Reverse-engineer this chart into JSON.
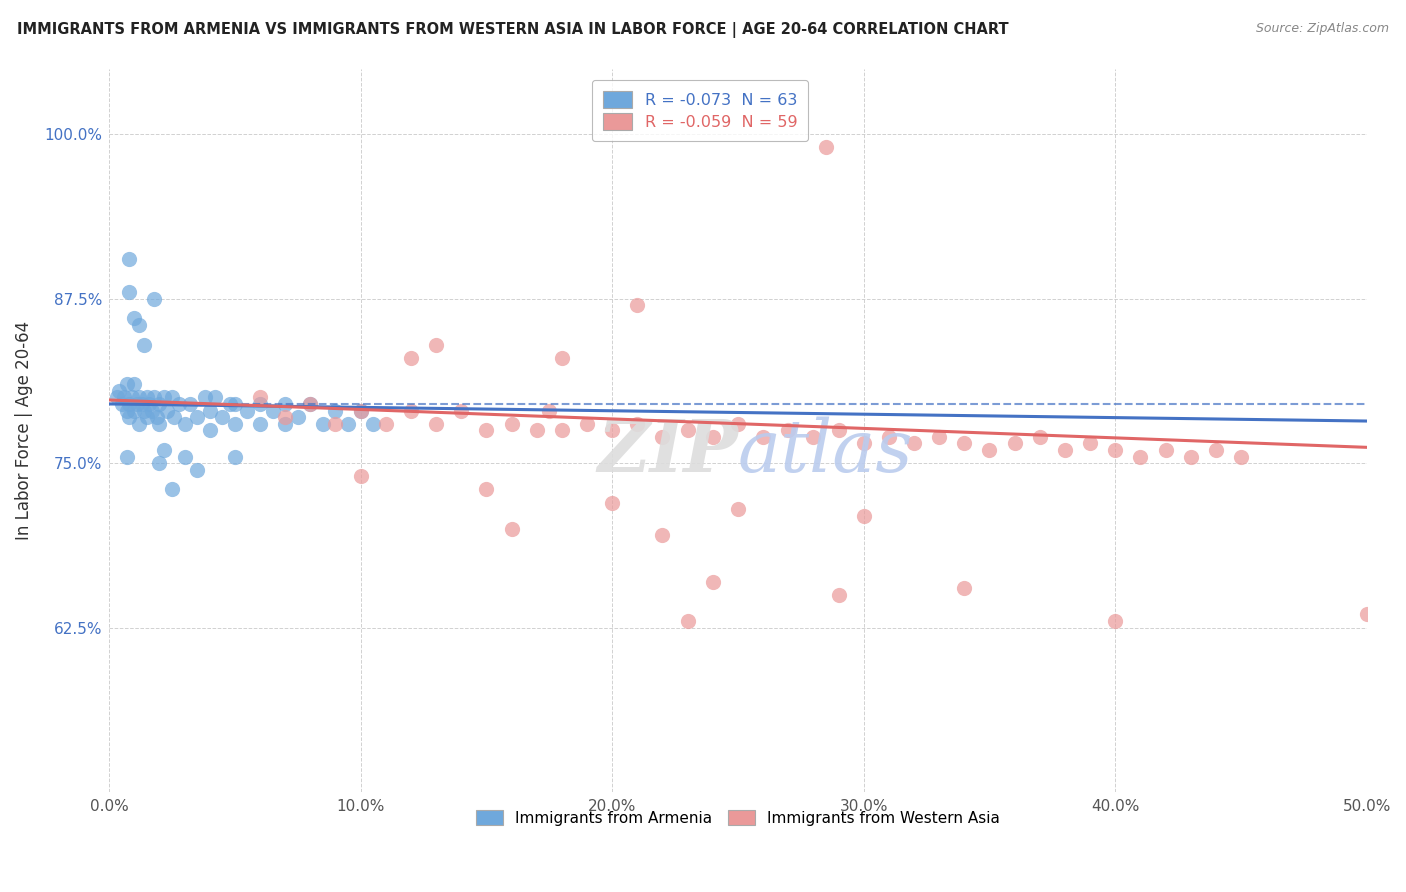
{
  "title": "IMMIGRANTS FROM ARMENIA VS IMMIGRANTS FROM WESTERN ASIA IN LABOR FORCE | AGE 20-64 CORRELATION CHART",
  "source": "Source: ZipAtlas.com",
  "ylabel": "In Labor Force | Age 20-64",
  "xlim": [
    0.0,
    0.5
  ],
  "ylim": [
    0.5,
    1.05
  ],
  "yticks": [
    0.625,
    0.75,
    0.875,
    1.0
  ],
  "ytick_labels": [
    "62.5%",
    "75.0%",
    "87.5%",
    "100.0%"
  ],
  "xticks": [
    0.0,
    0.1,
    0.2,
    0.3,
    0.4,
    0.5
  ],
  "xtick_labels": [
    "0.0%",
    "10.0%",
    "20.0%",
    "30.0%",
    "40.0%",
    "50.0%"
  ],
  "legend1_label": "R = -0.073  N = 63",
  "legend2_label": "R = -0.059  N = 59",
  "series1_color": "#6fa8dc",
  "series2_color": "#ea9999",
  "line1_color": "#4472c4",
  "line2_color": "#e06666",
  "line1_dash_color": "#4472c4",
  "armenia_line": [
    0.0,
    0.795,
    0.5,
    0.782
  ],
  "western_line": [
    0.0,
    0.798,
    0.5,
    0.762
  ],
  "armenia_dash_line": [
    0.0,
    0.795,
    0.5,
    0.795
  ],
  "armenia_points": [
    [
      0.003,
      0.8
    ],
    [
      0.004,
      0.805
    ],
    [
      0.005,
      0.795
    ],
    [
      0.006,
      0.8
    ],
    [
      0.007,
      0.79
    ],
    [
      0.007,
      0.81
    ],
    [
      0.008,
      0.795
    ],
    [
      0.008,
      0.785
    ],
    [
      0.009,
      0.8
    ],
    [
      0.01,
      0.79
    ],
    [
      0.01,
      0.81
    ],
    [
      0.011,
      0.795
    ],
    [
      0.012,
      0.8
    ],
    [
      0.012,
      0.78
    ],
    [
      0.013,
      0.795
    ],
    [
      0.014,
      0.79
    ],
    [
      0.015,
      0.8
    ],
    [
      0.015,
      0.785
    ],
    [
      0.016,
      0.795
    ],
    [
      0.017,
      0.79
    ],
    [
      0.018,
      0.8
    ],
    [
      0.019,
      0.785
    ],
    [
      0.02,
      0.795
    ],
    [
      0.02,
      0.78
    ],
    [
      0.022,
      0.8
    ],
    [
      0.023,
      0.79
    ],
    [
      0.025,
      0.8
    ],
    [
      0.026,
      0.785
    ],
    [
      0.028,
      0.795
    ],
    [
      0.03,
      0.78
    ],
    [
      0.032,
      0.795
    ],
    [
      0.035,
      0.785
    ],
    [
      0.038,
      0.8
    ],
    [
      0.04,
      0.79
    ],
    [
      0.04,
      0.775
    ],
    [
      0.042,
      0.8
    ],
    [
      0.045,
      0.785
    ],
    [
      0.048,
      0.795
    ],
    [
      0.05,
      0.78
    ],
    [
      0.05,
      0.795
    ],
    [
      0.055,
      0.79
    ],
    [
      0.06,
      0.78
    ],
    [
      0.06,
      0.795
    ],
    [
      0.065,
      0.79
    ],
    [
      0.07,
      0.78
    ],
    [
      0.07,
      0.795
    ],
    [
      0.075,
      0.785
    ],
    [
      0.08,
      0.795
    ],
    [
      0.085,
      0.78
    ],
    [
      0.09,
      0.79
    ],
    [
      0.095,
      0.78
    ],
    [
      0.1,
      0.79
    ],
    [
      0.105,
      0.78
    ],
    [
      0.008,
      0.88
    ],
    [
      0.01,
      0.86
    ],
    [
      0.012,
      0.855
    ],
    [
      0.014,
      0.84
    ],
    [
      0.018,
      0.875
    ],
    [
      0.022,
      0.76
    ],
    [
      0.03,
      0.755
    ],
    [
      0.035,
      0.745
    ],
    [
      0.02,
      0.75
    ],
    [
      0.05,
      0.755
    ],
    [
      0.007,
      0.755
    ],
    [
      0.025,
      0.73
    ],
    [
      0.008,
      0.905
    ]
  ],
  "western_points": [
    [
      0.06,
      0.8
    ],
    [
      0.07,
      0.785
    ],
    [
      0.08,
      0.795
    ],
    [
      0.09,
      0.78
    ],
    [
      0.1,
      0.79
    ],
    [
      0.11,
      0.78
    ],
    [
      0.12,
      0.79
    ],
    [
      0.13,
      0.78
    ],
    [
      0.14,
      0.79
    ],
    [
      0.15,
      0.775
    ],
    [
      0.16,
      0.78
    ],
    [
      0.17,
      0.775
    ],
    [
      0.175,
      0.79
    ],
    [
      0.18,
      0.775
    ],
    [
      0.19,
      0.78
    ],
    [
      0.2,
      0.775
    ],
    [
      0.21,
      0.78
    ],
    [
      0.22,
      0.77
    ],
    [
      0.23,
      0.775
    ],
    [
      0.24,
      0.77
    ],
    [
      0.25,
      0.78
    ],
    [
      0.26,
      0.77
    ],
    [
      0.27,
      0.775
    ],
    [
      0.28,
      0.77
    ],
    [
      0.29,
      0.775
    ],
    [
      0.3,
      0.765
    ],
    [
      0.31,
      0.77
    ],
    [
      0.32,
      0.765
    ],
    [
      0.33,
      0.77
    ],
    [
      0.34,
      0.765
    ],
    [
      0.35,
      0.76
    ],
    [
      0.36,
      0.765
    ],
    [
      0.37,
      0.77
    ],
    [
      0.38,
      0.76
    ],
    [
      0.39,
      0.765
    ],
    [
      0.4,
      0.76
    ],
    [
      0.41,
      0.755
    ],
    [
      0.42,
      0.76
    ],
    [
      0.43,
      0.755
    ],
    [
      0.44,
      0.76
    ],
    [
      0.45,
      0.755
    ],
    [
      0.285,
      0.99
    ],
    [
      0.18,
      0.83
    ],
    [
      0.12,
      0.83
    ],
    [
      0.13,
      0.84
    ],
    [
      0.21,
      0.87
    ],
    [
      0.1,
      0.74
    ],
    [
      0.15,
      0.73
    ],
    [
      0.2,
      0.72
    ],
    [
      0.25,
      0.715
    ],
    [
      0.16,
      0.7
    ],
    [
      0.22,
      0.695
    ],
    [
      0.3,
      0.71
    ],
    [
      0.24,
      0.66
    ],
    [
      0.29,
      0.65
    ],
    [
      0.34,
      0.655
    ],
    [
      0.23,
      0.63
    ],
    [
      0.5,
      0.635
    ],
    [
      0.4,
      0.63
    ]
  ]
}
